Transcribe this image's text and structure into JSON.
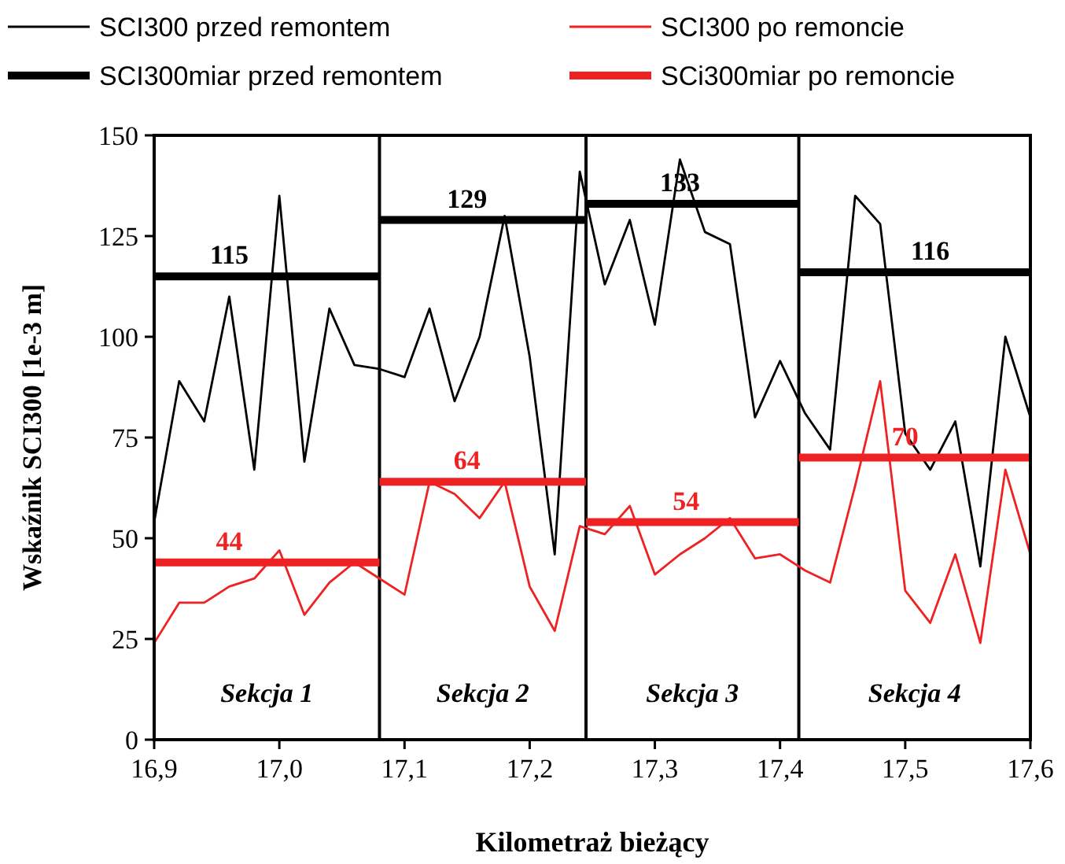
{
  "chart_data": {
    "type": "line",
    "xlabel": "Kilometraż bieżący",
    "ylabel": "Wskaźnik SCI300 [1e-3 m]",
    "xlim": [
      16.9,
      17.6
    ],
    "xticks": [
      {
        "value": 16.9,
        "label": "16,9"
      },
      {
        "value": 17.0,
        "label": "17,0"
      },
      {
        "value": 17.1,
        "label": "17,1"
      },
      {
        "value": 17.2,
        "label": "17,2"
      },
      {
        "value": 17.3,
        "label": "17,3"
      },
      {
        "value": 17.4,
        "label": "17,4"
      },
      {
        "value": 17.5,
        "label": "17,5"
      },
      {
        "value": 17.6,
        "label": "17,6"
      }
    ],
    "ylim": [
      0,
      150
    ],
    "yticks": [
      0,
      25,
      50,
      75,
      100,
      125,
      150
    ],
    "grid": false,
    "legend": "top",
    "marker": "none",
    "line_style": "solid",
    "x": [
      16.9,
      16.92,
      16.94,
      16.96,
      16.98,
      17.0,
      17.02,
      17.04,
      17.06,
      17.08,
      17.1,
      17.12,
      17.14,
      17.16,
      17.18,
      17.2,
      17.22,
      17.24,
      17.26,
      17.28,
      17.3,
      17.32,
      17.34,
      17.36,
      17.38,
      17.4,
      17.42,
      17.44,
      17.46,
      17.48,
      17.5,
      17.52,
      17.54,
      17.56,
      17.58,
      17.6
    ],
    "series": [
      {
        "name": "SCI300 przed remontem",
        "color": "#000000",
        "values": [
          54,
          89,
          79,
          110,
          67,
          135,
          69,
          107,
          93,
          92,
          90,
          107,
          84,
          100,
          130,
          95,
          46,
          141,
          113,
          129,
          103,
          144,
          126,
          123,
          80,
          94,
          81,
          72,
          135,
          128,
          76,
          67,
          79,
          43,
          100,
          80
        ]
      },
      {
        "name": "SCI300 po remoncie",
        "color": "#ee2222",
        "values": [
          24,
          34,
          34,
          38,
          40,
          47,
          31,
          39,
          44,
          40,
          36,
          64,
          61,
          55,
          64,
          38,
          27,
          53,
          51,
          58,
          41,
          46,
          50,
          55,
          45,
          46,
          42,
          39,
          63,
          89,
          37,
          29,
          46,
          24,
          67,
          46
        ]
      },
      {
        "name": "SCI300miar przed remontem",
        "color": "#000000",
        "x": [
          16.9,
          16.96,
          17.08
        ],
        "values": [
          115,
          115,
          115
        ],
        "value_labels": [
          null,
          "115",
          null
        ]
      },
      {
        "color": "#000000",
        "x": [
          17.08,
          17.15,
          17.245
        ],
        "values": [
          129,
          129,
          129
        ],
        "value_labels": [
          null,
          "129",
          null
        ]
      },
      {
        "color": "#000000",
        "x": [
          17.245,
          17.32,
          17.415
        ],
        "values": [
          133,
          133,
          133
        ],
        "value_labels": [
          null,
          "133",
          null
        ]
      },
      {
        "color": "#000000",
        "x": [
          17.415,
          17.52,
          17.6
        ],
        "values": [
          116,
          116,
          116
        ],
        "value_labels": [
          null,
          "116",
          null
        ]
      },
      {
        "name": "SCi300miar po remoncie",
        "color": "#ee2222",
        "x": [
          16.9,
          16.96,
          17.08
        ],
        "values": [
          44,
          44,
          44
        ],
        "value_labels": [
          null,
          "44",
          null
        ]
      },
      {
        "color": "#ee2222",
        "x": [
          17.08,
          17.15,
          17.245
        ],
        "values": [
          64,
          64,
          64
        ],
        "value_labels": [
          null,
          "64",
          null
        ]
      },
      {
        "color": "#ee2222",
        "x": [
          17.245,
          17.325,
          17.415
        ],
        "values": [
          54,
          54,
          54
        ],
        "value_labels": [
          null,
          "54",
          null
        ]
      },
      {
        "color": "#ee2222",
        "x": [
          17.415,
          17.5,
          17.6
        ],
        "values": [
          70,
          70,
          70
        ],
        "value_labels": [
          null,
          "70",
          null
        ]
      }
    ],
    "ref_lines": [
      {
        "axis": "x",
        "value": 17.08,
        "color": "#000000"
      },
      {
        "axis": "x",
        "value": 17.245,
        "color": "#000000"
      },
      {
        "axis": "x",
        "value": 17.415,
        "color": "#000000"
      }
    ],
    "annotations": [
      "Sekcja 1",
      "Sekcja 2",
      "Sekcja 3",
      "Sekcja 4"
    ]
  }
}
